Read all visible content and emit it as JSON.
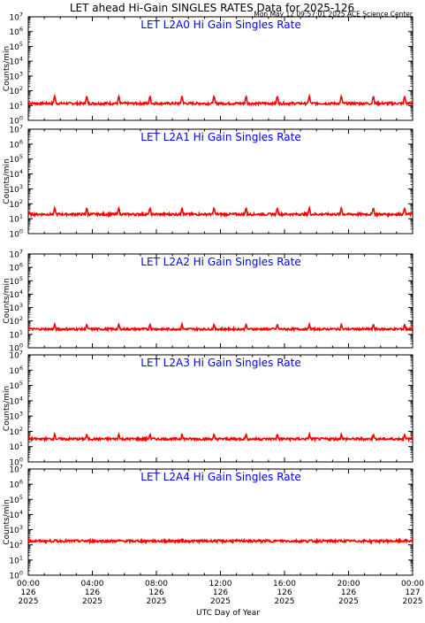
{
  "header": {
    "title": "LET ahead Hi-Gain SINGLES RATES Data for 2025-126",
    "timestamp": "Mon May 12 09:57:01 2025 ACE Science Center"
  },
  "colors": {
    "trace": "#ff0000",
    "panel_title": "#0000ff",
    "axes": "#000000"
  },
  "chart_data": [
    {
      "type": "line",
      "title": "LET L2A0 Hi Gain Singles Rate",
      "ylabel": "Counts/min",
      "yscale": "log",
      "ylim_exponent": [
        0,
        7
      ],
      "x_range_hours": [
        0,
        24
      ],
      "baseline": 14,
      "spike_peak": 45,
      "spike_hours": [
        1.65,
        3.65,
        5.65,
        7.6,
        9.6,
        11.6,
        13.6,
        15.55,
        17.55,
        19.55,
        21.55,
        23.5
      ],
      "series": [
        {
          "values": []
        }
      ]
    },
    {
      "type": "line",
      "title": "LET L2A1 Hi Gain Singles Rate",
      "ylabel": "Counts/min",
      "yscale": "log",
      "ylim_exponent": [
        0,
        7
      ],
      "x_range_hours": [
        0,
        24
      ],
      "baseline": 20,
      "spike_peak": 55,
      "spike_hours": [
        1.65,
        3.65,
        5.65,
        7.6,
        9.6,
        11.6,
        13.6,
        15.55,
        17.55,
        19.55,
        21.55,
        23.5
      ],
      "series": [
        {
          "values": []
        }
      ]
    },
    {
      "type": "line",
      "title": "LET L2A2 Hi Gain Singles Rate",
      "ylabel": "Counts/min",
      "yscale": "log",
      "ylim_exponent": [
        0,
        7
      ],
      "x_range_hours": [
        0,
        24
      ],
      "baseline": 25,
      "spike_peak": 60,
      "spike_hours": [
        1.65,
        3.65,
        5.65,
        7.6,
        9.6,
        11.6,
        13.6,
        15.55,
        17.55,
        19.55,
        21.55,
        23.5
      ],
      "series": [
        {
          "values": []
        }
      ]
    },
    {
      "type": "line",
      "title": "LET L2A3 Hi Gain Singles Rate",
      "ylabel": "Counts/min",
      "yscale": "log",
      "ylim_exponent": [
        0,
        7
      ],
      "x_range_hours": [
        0,
        24
      ],
      "baseline": 32,
      "spike_peak": 70,
      "spike_hours": [
        1.65,
        3.65,
        5.65,
        7.6,
        9.6,
        11.6,
        13.6,
        15.55,
        17.55,
        19.55,
        21.55,
        23.5
      ],
      "series": [
        {
          "values": []
        }
      ]
    },
    {
      "type": "line",
      "title": "LET L2A4 Hi Gain Singles Rate",
      "ylabel": "Counts/min",
      "yscale": "log",
      "ylim_exponent": [
        0,
        7
      ],
      "x_range_hours": [
        0,
        24
      ],
      "baseline": 180,
      "spike_peak": 220,
      "spike_hours": [
        1.65,
        3.65,
        5.65,
        7.6,
        9.6,
        11.6,
        13.6,
        15.55,
        17.55,
        19.55,
        21.55,
        23.5
      ],
      "series": [
        {
          "values": []
        }
      ]
    }
  ],
  "y_tick_labels": [
    {
      "base": "10",
      "exp": "0"
    },
    {
      "base": "10",
      "exp": "1"
    },
    {
      "base": "10",
      "exp": "2"
    },
    {
      "base": "10",
      "exp": "3"
    },
    {
      "base": "10",
      "exp": "4"
    },
    {
      "base": "10",
      "exp": "5"
    },
    {
      "base": "10",
      "exp": "6"
    },
    {
      "base": "10",
      "exp": "7"
    }
  ],
  "x_ticks": [
    {
      "time": "00:00",
      "day": "126",
      "year": "2025",
      "hour": 0
    },
    {
      "time": "04:00",
      "day": "126",
      "year": "2025",
      "hour": 4
    },
    {
      "time": "08:00",
      "day": "126",
      "year": "2025",
      "hour": 8
    },
    {
      "time": "12:00",
      "day": "126",
      "year": "2025",
      "hour": 12
    },
    {
      "time": "16:00",
      "day": "126",
      "year": "2025",
      "hour": 16
    },
    {
      "time": "20:00",
      "day": "126",
      "year": "2025",
      "hour": 20
    },
    {
      "time": "00:00",
      "day": "127",
      "year": "2025",
      "hour": 24
    }
  ],
  "xlabel": "UTC Day of Year"
}
